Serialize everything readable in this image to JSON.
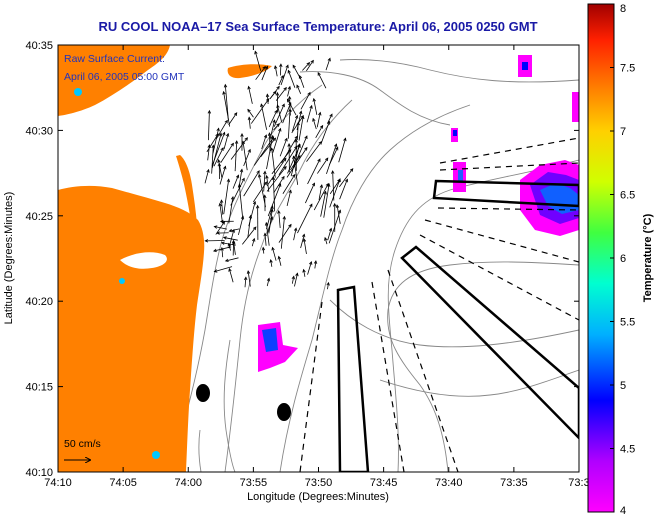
{
  "title": "RU COOL  NOAA–17  Sea Surface Temperature:  April 06, 2005 0250 GMT",
  "overlay": {
    "current_label": "Raw Surface Current:",
    "current_time": "April 06, 2005 05:00 GMT",
    "scale_label": "50 cm/s"
  },
  "axes": {
    "xlabel": "Longitude (Degrees:Minutes)",
    "ylabel": "Latitude (Degrees:Minutes)",
    "xticks": [
      "74:10",
      "74:05",
      "74:00",
      "73:55",
      "73:50",
      "73:45",
      "73:40",
      "73:35",
      "73:3"
    ],
    "yticks": [
      "40:35",
      "40:30",
      "40:25",
      "40:20",
      "40:15",
      "40:10"
    ]
  },
  "colorbar": {
    "label": "Temperature (°C)",
    "ticks": [
      "8",
      "7.5",
      "7",
      "6.5",
      "6",
      "5.5",
      "5",
      "4.5",
      "4"
    ],
    "min": 4,
    "max": 8
  },
  "colors": {
    "land": "#ff8000",
    "title": "#1a1aa6",
    "annotation": "#2233bb"
  }
}
